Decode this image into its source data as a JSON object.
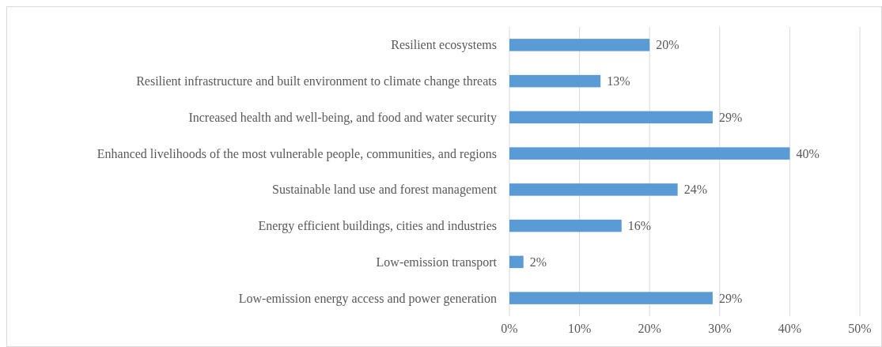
{
  "chart_data": {
    "type": "bar",
    "orientation": "horizontal",
    "categories": [
      "Resilient ecosystems",
      "Resilient infrastructure and built environment to climate change threats",
      "Increased health and well-being, and food and water security",
      "Enhanced livelihoods of the most vulnerable people, communities, and regions",
      "Sustainable land use and forest management",
      "Energy efficient buildings, cities and industries",
      "Low-emission transport",
      "Low-emission energy access and power generation"
    ],
    "values": [
      20,
      13,
      29,
      40,
      24,
      16,
      2,
      29
    ],
    "value_labels": [
      "20%",
      "13%",
      "29%",
      "40%",
      "24%",
      "16%",
      "2%",
      "29%"
    ],
    "color": "#5b9bd5",
    "xlim": [
      0,
      50
    ],
    "xticks": [
      {
        "value": 0,
        "label": "0%"
      },
      {
        "value": 10,
        "label": "10%"
      },
      {
        "value": 20,
        "label": "20%"
      },
      {
        "value": 30,
        "label": "30%"
      },
      {
        "value": 40,
        "label": "40%"
      },
      {
        "value": 50,
        "label": "50%"
      }
    ],
    "grid": "x"
  }
}
